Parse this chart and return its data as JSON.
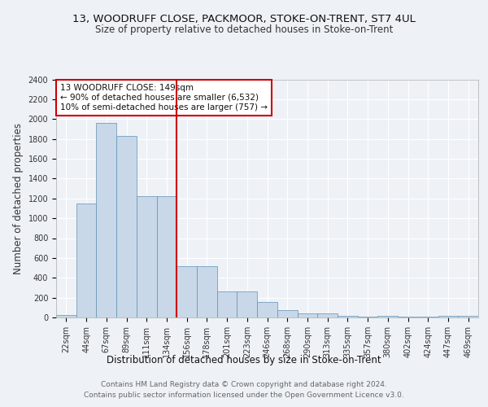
{
  "title_line1": "13, WOODRUFF CLOSE, PACKMOOR, STOKE-ON-TRENT, ST7 4UL",
  "title_line2": "Size of property relative to detached houses in Stoke-on-Trent",
  "xlabel": "Distribution of detached houses by size in Stoke-on-Trent",
  "ylabel": "Number of detached properties",
  "categories": [
    "22sqm",
    "44sqm",
    "67sqm",
    "89sqm",
    "111sqm",
    "134sqm",
    "156sqm",
    "178sqm",
    "201sqm",
    "223sqm",
    "246sqm",
    "268sqm",
    "290sqm",
    "313sqm",
    "335sqm",
    "357sqm",
    "380sqm",
    "402sqm",
    "424sqm",
    "447sqm",
    "469sqm"
  ],
  "values": [
    25,
    1150,
    1960,
    1830,
    1220,
    1220,
    515,
    515,
    265,
    265,
    155,
    70,
    45,
    45,
    15,
    10,
    15,
    10,
    5,
    15,
    15
  ],
  "bar_color": "#c8d8e8",
  "bar_edge_color": "#6090b0",
  "vline_x_idx": 5.5,
  "vline_color": "#cc0000",
  "annotation_text": "13 WOODRUFF CLOSE: 149sqm\n← 90% of detached houses are smaller (6,532)\n10% of semi-detached houses are larger (757) →",
  "annotation_box_color": "#ffffff",
  "annotation_box_edge": "#cc0000",
  "ylim": [
    0,
    2400
  ],
  "yticks": [
    0,
    200,
    400,
    600,
    800,
    1000,
    1200,
    1400,
    1600,
    1800,
    2000,
    2200,
    2400
  ],
  "footer_line1": "Contains HM Land Registry data © Crown copyright and database right 2024.",
  "footer_line2": "Contains public sector information licensed under the Open Government Licence v3.0.",
  "bg_color": "#eef2f7",
  "plot_bg_color": "#eef2f7",
  "grid_color": "#ffffff",
  "title_fontsize": 9.5,
  "subtitle_fontsize": 8.5,
  "axis_label_fontsize": 8.5,
  "tick_fontsize": 7,
  "footer_fontsize": 6.5,
  "annotation_fontsize": 7.5
}
